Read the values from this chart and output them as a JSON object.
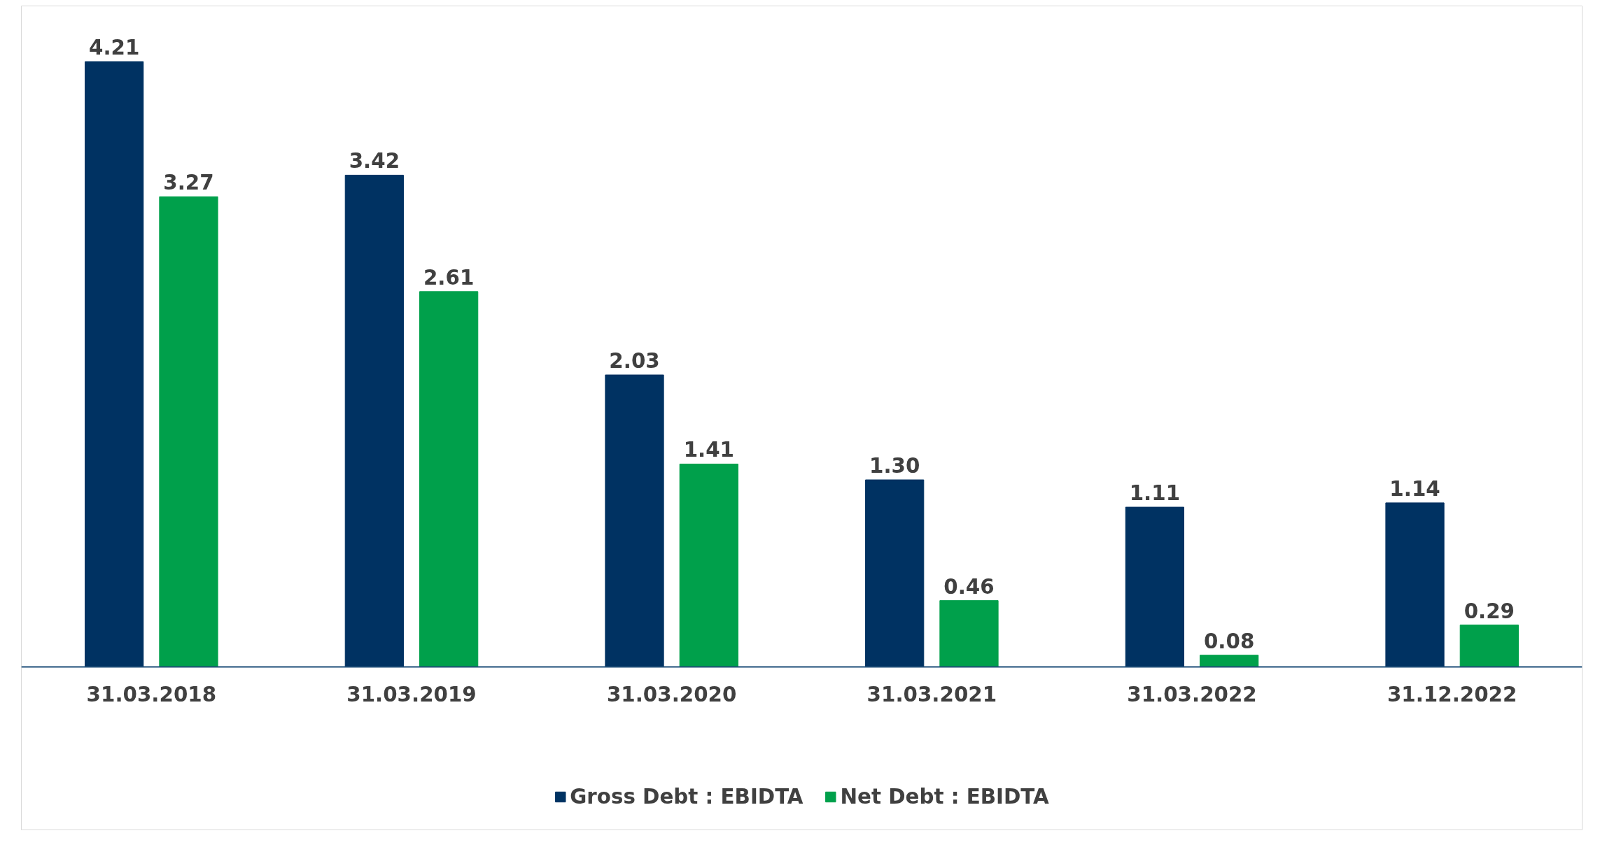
{
  "chart_data": {
    "type": "bar",
    "categories": [
      "31.03.2018",
      "31.03.2019",
      "31.03.2020",
      "31.03.2021",
      "31.03.2022",
      "31.12.2022"
    ],
    "series": [
      {
        "name": "Gross Debt : EBIDTA",
        "color": "#003262",
        "values": [
          4.21,
          3.42,
          2.03,
          1.3,
          1.11,
          1.14
        ],
        "value_labels": [
          "4.21",
          "3.42",
          "2.03",
          "1.30",
          "1.11",
          "1.14"
        ]
      },
      {
        "name": "Net Debt : EBIDTA",
        "color": "#00a04b",
        "values": [
          3.27,
          2.61,
          1.41,
          0.46,
          0.08,
          0.29
        ],
        "value_labels": [
          "3.27",
          "2.61",
          "1.41",
          "0.46",
          "0.08",
          "0.29"
        ]
      }
    ],
    "legend": "bottom",
    "grid": false
  }
}
